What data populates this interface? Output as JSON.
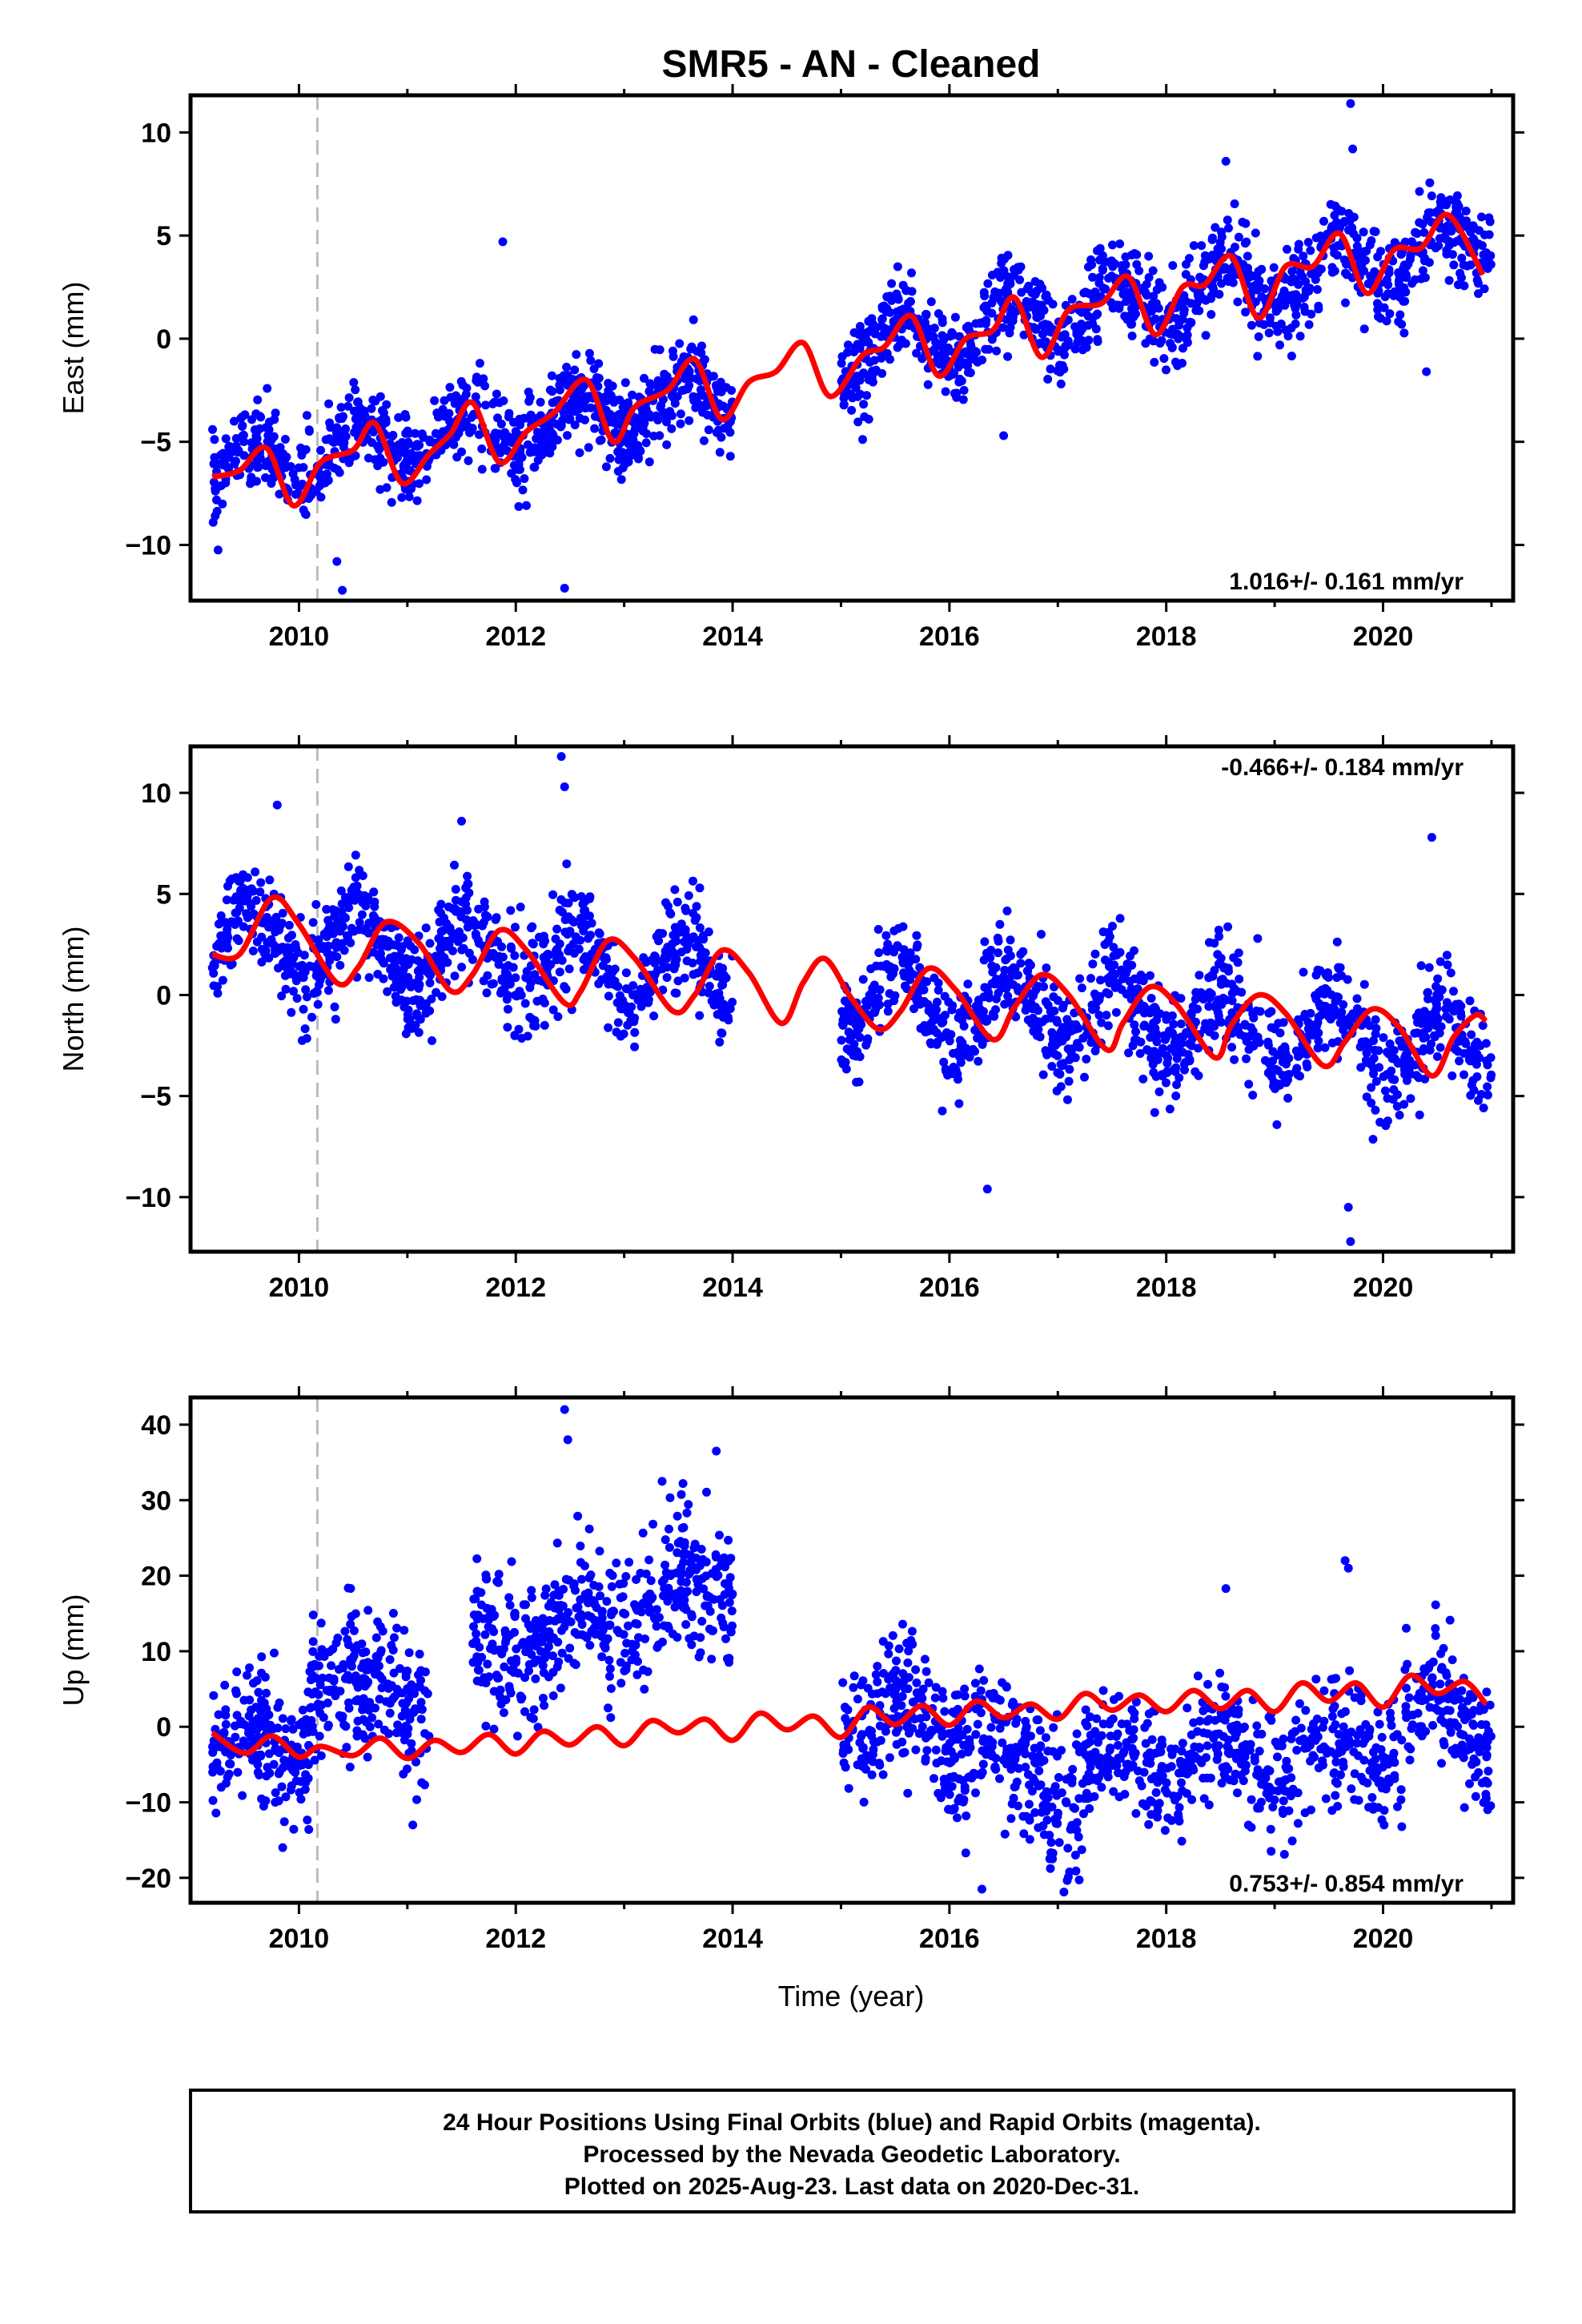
{
  "title": "SMR5  - AN - Cleaned",
  "xlabel": "Time (year)",
  "footer": {
    "line1": "24 Hour Positions Using Final Orbits (blue) and Rapid Orbits (magenta).",
    "line2": "Processed by the Nevada Geodetic Laboratory.",
    "line3": "Plotted on 2025-Aug-23. Last data on 2020-Dec-31."
  },
  "colors": {
    "data": "#0000ff",
    "model": "#ff0000",
    "event": "#bbbbbb",
    "frame": "#000000"
  },
  "chart_data": [
    {
      "type": "scatter",
      "component": "East",
      "ylabel": "East (mm)",
      "xlim": [
        2009.0,
        2021.2
      ],
      "ylim": [
        -12.7,
        11.8
      ],
      "xticks": [
        "2010",
        "2012",
        "2014",
        "2016",
        "2018",
        "2020"
      ],
      "yticks": [
        "10",
        "5",
        "0",
        "−5",
        "−10"
      ],
      "ytick_values": [
        10,
        5,
        0,
        -5,
        -10
      ],
      "rate_text": "1.016+/- 0.161 mm/yr",
      "rate_position": "bottom-right",
      "event_line_x": 2010.17,
      "data_gap": [
        2014.05,
        2015.0
      ],
      "model_points": [
        [
          2009.2,
          -6.7
        ],
        [
          2009.45,
          -6.4
        ],
        [
          2009.7,
          -5.3
        ],
        [
          2009.95,
          -8.1
        ],
        [
          2010.2,
          -6.0
        ],
        [
          2010.5,
          -5.4
        ],
        [
          2010.7,
          -4.1
        ],
        [
          2010.95,
          -7.0
        ],
        [
          2011.2,
          -5.6
        ],
        [
          2011.4,
          -4.6
        ],
        [
          2011.6,
          -3.1
        ],
        [
          2011.85,
          -6.0
        ],
        [
          2012.1,
          -4.5
        ],
        [
          2012.35,
          -3.6
        ],
        [
          2012.65,
          -2.0
        ],
        [
          2012.9,
          -5.0
        ],
        [
          2013.1,
          -3.3
        ],
        [
          2013.4,
          -2.5
        ],
        [
          2013.65,
          -1.0
        ],
        [
          2013.9,
          -3.9
        ],
        [
          2014.15,
          -2.1
        ],
        [
          2014.4,
          -1.6
        ],
        [
          2014.65,
          -0.2
        ],
        [
          2014.9,
          -2.8
        ],
        [
          2015.2,
          -0.8
        ],
        [
          2015.4,
          -0.4
        ],
        [
          2015.65,
          1.1
        ],
        [
          2015.9,
          -1.8
        ],
        [
          2016.15,
          0.0
        ],
        [
          2016.4,
          0.4
        ],
        [
          2016.6,
          2.0
        ],
        [
          2016.85,
          -0.9
        ],
        [
          2017.1,
          1.4
        ],
        [
          2017.4,
          1.7
        ],
        [
          2017.65,
          3.0
        ],
        [
          2017.9,
          0.2
        ],
        [
          2018.15,
          2.5
        ],
        [
          2018.35,
          2.6
        ],
        [
          2018.6,
          4.0
        ],
        [
          2018.85,
          1.0
        ],
        [
          2019.1,
          3.5
        ],
        [
          2019.35,
          3.5
        ],
        [
          2019.6,
          5.1
        ],
        [
          2019.85,
          2.2
        ],
        [
          2020.1,
          4.3
        ],
        [
          2020.35,
          4.4
        ],
        [
          2020.6,
          6.0
        ],
        [
          2020.92,
          3.1
        ]
      ],
      "point_segments": [
        {
          "x": [
            2009.2,
            2014.0
          ],
          "trend": [
            -6.5,
            -2.6
          ],
          "amp": 1.1,
          "noise": 1.0,
          "n": 900
        },
        {
          "x": [
            2015.0,
            2021.0
          ],
          "trend": [
            -0.7,
            4.6
          ],
          "amp": 1.2,
          "noise": 1.1,
          "n": 1100
        }
      ],
      "outliers": [
        [
          2011.88,
          4.7
        ],
        [
          2010.35,
          -10.8
        ],
        [
          2010.4,
          -12.2
        ],
        [
          2012.45,
          -12.1
        ],
        [
          2019.7,
          11.4
        ],
        [
          2019.72,
          9.2
        ],
        [
          2018.55,
          8.6
        ],
        [
          2016.5,
          -4.7
        ],
        [
          2020.4,
          -1.6
        ]
      ]
    },
    {
      "type": "scatter",
      "component": "North",
      "ylabel": "North (mm)",
      "xlim": [
        2009.0,
        2021.2
      ],
      "ylim": [
        -12.7,
        12.3
      ],
      "xticks": [
        "2010",
        "2012",
        "2014",
        "2016",
        "2018",
        "2020"
      ],
      "yticks": [
        "10",
        "5",
        "0",
        "−5",
        "−10"
      ],
      "ytick_values": [
        10,
        5,
        0,
        -5,
        -10
      ],
      "rate_text": "-0.466+/- 0.184 mm/yr",
      "rate_position": "top-right",
      "event_line_x": 2010.17,
      "data_gap": [
        2014.0,
        2015.0
      ],
      "model_points": [
        [
          2009.2,
          2.0
        ],
        [
          2009.45,
          2.0
        ],
        [
          2009.75,
          4.8
        ],
        [
          2010.0,
          3.5
        ],
        [
          2010.35,
          0.6
        ],
        [
          2010.55,
          1.4
        ],
        [
          2010.8,
          3.6
        ],
        [
          2011.1,
          2.6
        ],
        [
          2011.4,
          0.2
        ],
        [
          2011.6,
          1.0
        ],
        [
          2011.85,
          3.2
        ],
        [
          2012.1,
          2.2
        ],
        [
          2012.45,
          -0.4
        ],
        [
          2012.6,
          0.2
        ],
        [
          2012.85,
          2.7
        ],
        [
          2013.1,
          1.8
        ],
        [
          2013.45,
          -0.8
        ],
        [
          2013.65,
          0.0
        ],
        [
          2013.9,
          2.2
        ],
        [
          2014.15,
          1.1
        ],
        [
          2014.45,
          -1.4
        ],
        [
          2014.65,
          0.6
        ],
        [
          2014.85,
          1.8
        ],
        [
          2015.1,
          -0.2
        ],
        [
          2015.35,
          -1.7
        ],
        [
          2015.55,
          -0.8
        ],
        [
          2015.8,
          1.3
        ],
        [
          2016.05,
          0.3
        ],
        [
          2016.4,
          -2.2
        ],
        [
          2016.6,
          -0.6
        ],
        [
          2016.85,
          1.0
        ],
        [
          2017.1,
          0.0
        ],
        [
          2017.45,
          -2.7
        ],
        [
          2017.6,
          -1.4
        ],
        [
          2017.85,
          0.4
        ],
        [
          2018.1,
          -0.5
        ],
        [
          2018.45,
          -3.1
        ],
        [
          2018.6,
          -1.5
        ],
        [
          2018.85,
          0.0
        ],
        [
          2019.1,
          -0.9
        ],
        [
          2019.45,
          -3.5
        ],
        [
          2019.65,
          -2.3
        ],
        [
          2019.9,
          -0.7
        ],
        [
          2020.15,
          -1.6
        ],
        [
          2020.45,
          -4.0
        ],
        [
          2020.65,
          -2.1
        ],
        [
          2020.85,
          -1.0
        ],
        [
          2020.95,
          -1.3
        ]
      ],
      "point_segments": [
        {
          "x": [
            2009.2,
            2014.0
          ],
          "trend": [
            2.9,
            1.0
          ],
          "amp": 1.7,
          "noise": 1.2,
          "n": 900
        },
        {
          "x": [
            2015.0,
            2021.0
          ],
          "trend": [
            0.0,
            -2.6
          ],
          "amp": 1.7,
          "noise": 1.3,
          "n": 1100
        }
      ],
      "outliers": [
        [
          2012.42,
          11.8
        ],
        [
          2012.45,
          10.3
        ],
        [
          2009.8,
          9.4
        ],
        [
          2016.35,
          -9.6
        ],
        [
          2019.7,
          -12.2
        ],
        [
          2019.68,
          -10.5
        ],
        [
          2020.45,
          7.8
        ],
        [
          2011.5,
          8.6
        ]
      ]
    },
    {
      "type": "scatter",
      "component": "Up",
      "ylabel": "Up (mm)",
      "xlim": [
        2009.0,
        2021.2
      ],
      "ylim": [
        -23.3,
        43.6
      ],
      "xticks": [
        "2010",
        "2012",
        "2014",
        "2016",
        "2018",
        "2020"
      ],
      "yticks": [
        "40",
        "30",
        "20",
        "10",
        "0",
        "−10",
        "−20"
      ],
      "ytick_values": [
        40,
        30,
        20,
        10,
        0,
        -10,
        -20
      ],
      "rate_text": "0.753+/- 0.854 mm/yr",
      "rate_position": "bottom-right",
      "event_line_x": 2010.17,
      "data_gap": [
        2014.0,
        2015.0
      ],
      "model_points": [
        [
          2009.2,
          -0.8
        ],
        [
          2009.5,
          -3.5
        ],
        [
          2009.75,
          -1.2
        ],
        [
          2010.0,
          -4.0
        ],
        [
          2010.2,
          -2.6
        ],
        [
          2010.5,
          -3.8
        ],
        [
          2010.75,
          -1.5
        ],
        [
          2011.0,
          -4.2
        ],
        [
          2011.25,
          -1.8
        ],
        [
          2011.5,
          -3.4
        ],
        [
          2011.75,
          -1.0
        ],
        [
          2012.0,
          -3.6
        ],
        [
          2012.25,
          -0.6
        ],
        [
          2012.5,
          -2.4
        ],
        [
          2012.75,
          0.0
        ],
        [
          2013.0,
          -2.5
        ],
        [
          2013.25,
          0.8
        ],
        [
          2013.5,
          -0.8
        ],
        [
          2013.75,
          1.0
        ],
        [
          2014.0,
          -1.8
        ],
        [
          2014.25,
          1.8
        ],
        [
          2014.5,
          -0.4
        ],
        [
          2014.75,
          1.4
        ],
        [
          2015.0,
          -1.4
        ],
        [
          2015.25,
          2.6
        ],
        [
          2015.5,
          0.3
        ],
        [
          2015.75,
          2.8
        ],
        [
          2016.0,
          0.2
        ],
        [
          2016.25,
          3.4
        ],
        [
          2016.5,
          1.2
        ],
        [
          2016.75,
          3.0
        ],
        [
          2017.0,
          1.0
        ],
        [
          2017.25,
          4.4
        ],
        [
          2017.5,
          2.2
        ],
        [
          2017.75,
          4.2
        ],
        [
          2018.0,
          2.0
        ],
        [
          2018.25,
          4.8
        ],
        [
          2018.5,
          2.4
        ],
        [
          2018.75,
          4.8
        ],
        [
          2019.0,
          2.0
        ],
        [
          2019.25,
          5.8
        ],
        [
          2019.5,
          3.4
        ],
        [
          2019.75,
          5.8
        ],
        [
          2020.0,
          2.6
        ],
        [
          2020.25,
          6.8
        ],
        [
          2020.5,
          4.4
        ],
        [
          2020.75,
          6.0
        ],
        [
          2020.95,
          3.0
        ]
      ],
      "point_segments": [
        {
          "x": [
            2009.2,
            2010.1
          ],
          "trend": [
            -2.5,
            -2.5
          ],
          "amp": 2.0,
          "noise": 4.0,
          "n": 200
        },
        {
          "x": [
            2010.1,
            2011.2
          ],
          "trend": [
            6.0,
            3.5
          ],
          "amp": 2.0,
          "noise": 4.5,
          "n": 230
        },
        {
          "x": [
            2011.6,
            2014.0
          ],
          "trend": [
            10.0,
            19.0
          ],
          "amp": 2.5,
          "noise": 4.5,
          "n": 470
        },
        {
          "x": [
            2015.0,
            2016.5
          ],
          "trend": [
            2.0,
            -2.0
          ],
          "amp": 3.0,
          "noise": 4.5,
          "n": 300
        },
        {
          "x": [
            2016.5,
            2017.2
          ],
          "trend": [
            -6.0,
            -10.0
          ],
          "amp": 2.0,
          "noise": 5.0,
          "n": 140
        },
        {
          "x": [
            2017.2,
            2020.2
          ],
          "trend": [
            -4.5,
            -4.0
          ],
          "amp": 3.0,
          "noise": 4.0,
          "n": 520
        },
        {
          "x": [
            2020.2,
            2021.0
          ],
          "trend": [
            4.0,
            -1.0
          ],
          "amp": 3.0,
          "noise": 4.5,
          "n": 160
        }
      ],
      "outliers": [
        [
          2012.45,
          42.0
        ],
        [
          2012.48,
          38.0
        ],
        [
          2013.35,
          32.5
        ],
        [
          2013.85,
          36.5
        ],
        [
          2016.3,
          -21.5
        ],
        [
          2018.55,
          18.3
        ],
        [
          2019.65,
          22.0
        ],
        [
          2019.68,
          21.0
        ],
        [
          2011.05,
          -13.0
        ],
        [
          2009.85,
          -16.0
        ]
      ]
    }
  ]
}
